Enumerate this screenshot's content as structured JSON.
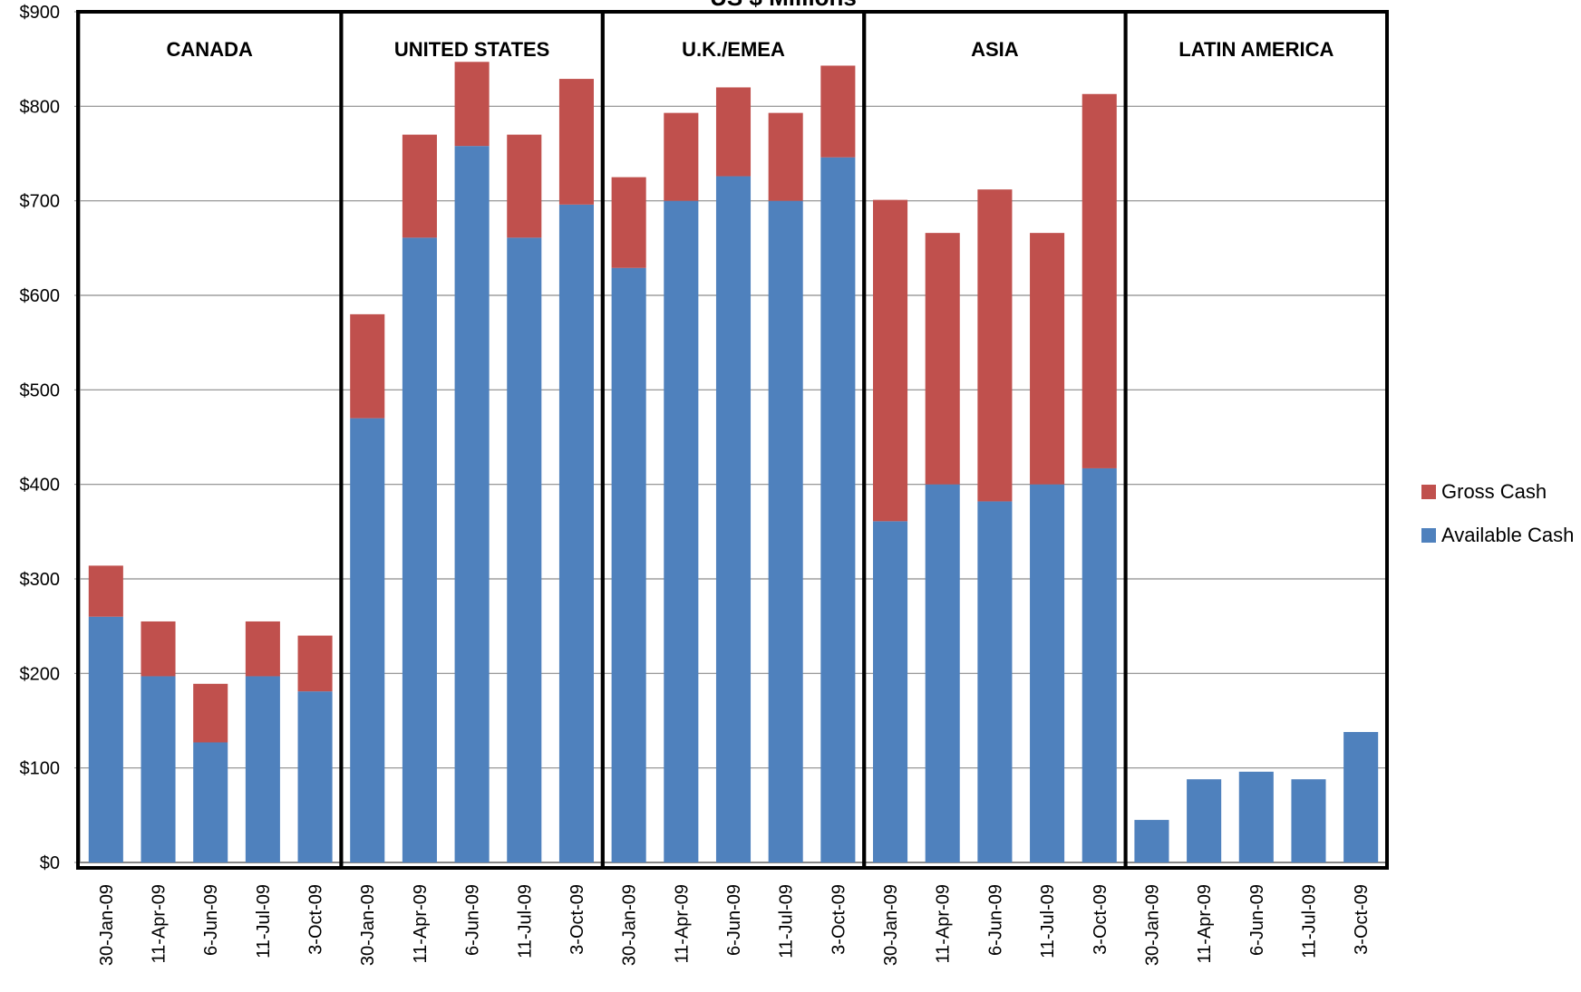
{
  "chart_data": {
    "type": "bar",
    "stacked": true,
    "title": "US $ Millions",
    "ylim": [
      0,
      900
    ],
    "y_ticks": [
      "$0",
      "$100",
      "$200",
      "$300",
      "$400",
      "$500",
      "$600",
      "$700",
      "$800",
      "$900"
    ],
    "y_tick_values": [
      0,
      100,
      200,
      300,
      400,
      500,
      600,
      700,
      800,
      900
    ],
    "grid": true,
    "legend_position": "right",
    "groups": [
      {
        "name": "CANADA",
        "categories": [
          "30-Jan-09",
          "11-Apr-09",
          "6-Jun-09",
          "11-Jul-09",
          "3-Oct-09"
        ],
        "available_cash": [
          260,
          197,
          127,
          197,
          181
        ],
        "gross_cash_total": [
          314,
          255,
          189,
          255,
          240
        ]
      },
      {
        "name": "UNITED STATES",
        "categories": [
          "30-Jan-09",
          "11-Apr-09",
          "6-Jun-09",
          "11-Jul-09",
          "3-Oct-09"
        ],
        "available_cash": [
          470,
          661,
          758,
          661,
          696
        ],
        "gross_cash_total": [
          580,
          770,
          847,
          770,
          829
        ]
      },
      {
        "name": "U.K./EMEA",
        "categories": [
          "30-Jan-09",
          "11-Apr-09",
          "6-Jun-09",
          "11-Jul-09",
          "3-Oct-09"
        ],
        "available_cash": [
          629,
          700,
          726,
          700,
          746
        ],
        "gross_cash_total": [
          725,
          793,
          820,
          793,
          843
        ]
      },
      {
        "name": "ASIA",
        "categories": [
          "30-Jan-09",
          "11-Apr-09",
          "6-Jun-09",
          "11-Jul-09",
          "3-Oct-09"
        ],
        "available_cash": [
          361,
          400,
          382,
          400,
          417
        ],
        "gross_cash_total": [
          701,
          666,
          712,
          666,
          813
        ]
      },
      {
        "name": "LATIN AMERICA",
        "categories": [
          "30-Jan-09",
          "11-Apr-09",
          "6-Jun-09",
          "11-Jul-09",
          "3-Oct-09"
        ],
        "available_cash": [
          45,
          88,
          96,
          88,
          138
        ],
        "gross_cash_total": [
          45,
          88,
          96,
          88,
          138
        ]
      }
    ],
    "series": [
      {
        "name": "Gross Cash",
        "color": "#C0504D"
      },
      {
        "name": "Available Cash",
        "color": "#4F81BD"
      }
    ]
  }
}
